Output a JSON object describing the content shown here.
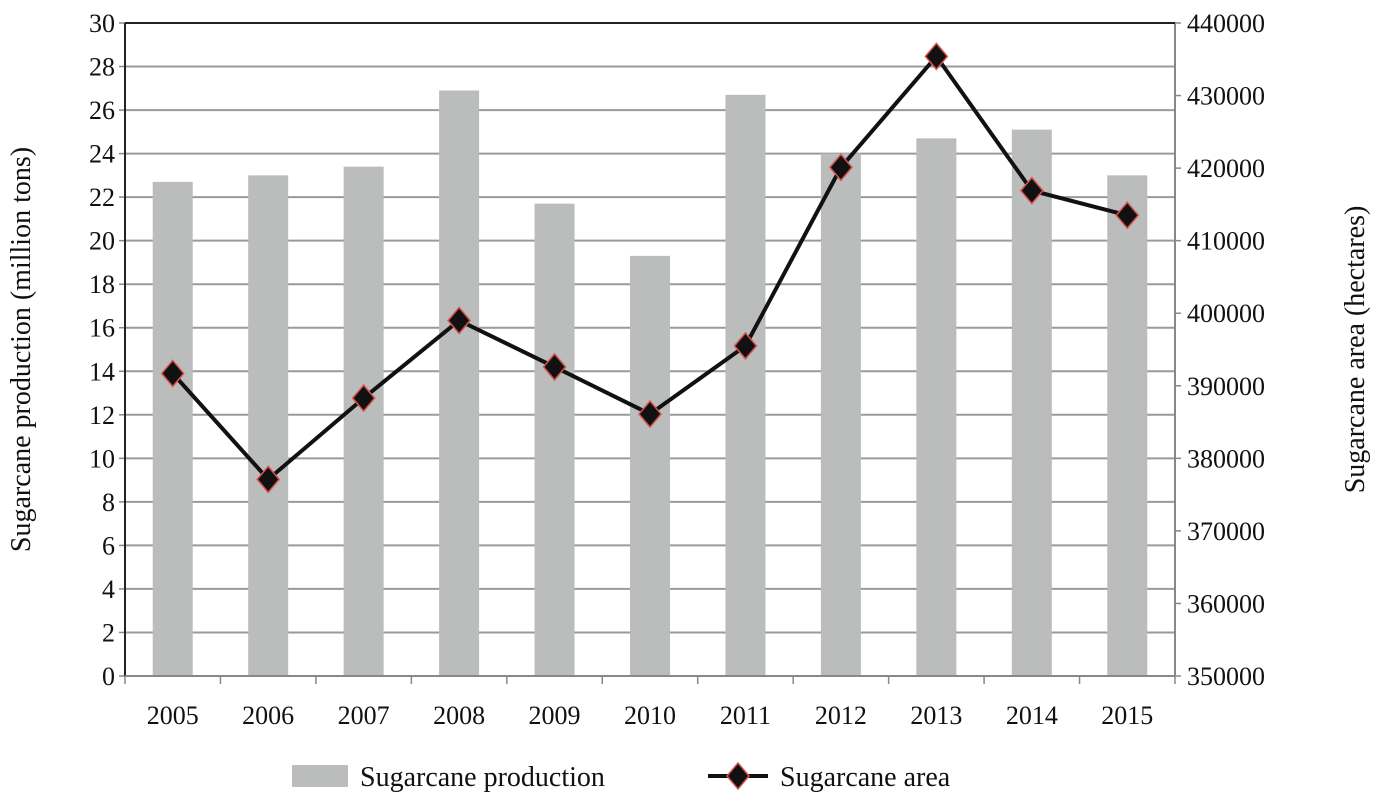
{
  "chart_data": {
    "type": "bar+line",
    "categories": [
      "2005",
      "2006",
      "2007",
      "2008",
      "2009",
      "2010",
      "2011",
      "2012",
      "2013",
      "2014",
      "2015"
    ],
    "series": [
      {
        "name": "Sugarcane production",
        "type": "bar",
        "axis": "left",
        "color": "#bbbcbc",
        "values": [
          22.7,
          23.0,
          23.4,
          26.9,
          21.7,
          19.3,
          26.7,
          24.0,
          24.7,
          25.1,
          23.0
        ]
      },
      {
        "name": "Sugarcane area",
        "type": "line",
        "axis": "right",
        "color": "#111111",
        "marker_edge": "#d9534f",
        "values": [
          391700,
          377100,
          388300,
          399000,
          392600,
          386100,
          395500,
          420100,
          435400,
          416900,
          413500
        ]
      }
    ],
    "ylabel": "Sugarcane production (million tons)",
    "y2label": "Sugarcane area (hectares)",
    "ylim": [
      0,
      30
    ],
    "y2lim": [
      350000,
      440000
    ],
    "yticks": [
      "0",
      "2",
      "4",
      "6",
      "8",
      "10",
      "12",
      "14",
      "16",
      "18",
      "20",
      "22",
      "24",
      "26",
      "28",
      "30"
    ],
    "y2ticks": [
      "350000",
      "360000",
      "370000",
      "380000",
      "390000",
      "400000",
      "410000",
      "420000",
      "430000",
      "440000"
    ],
    "grid": true,
    "legend_position": "bottom"
  }
}
